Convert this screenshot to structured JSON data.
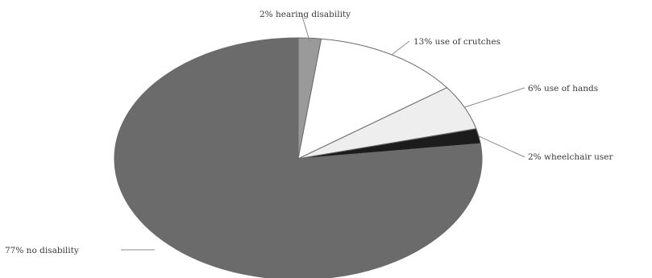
{
  "chart_data": {
    "type": "pie",
    "slices": [
      {
        "label": "2% hearing disability",
        "value": 2,
        "color": "#9a9a9a"
      },
      {
        "label": "13% use of crutches",
        "value": 13,
        "color": "#ffffff"
      },
      {
        "label": "6% use of hands",
        "value": 6,
        "color": "#eeeeee"
      },
      {
        "label": "2% wheelchair user",
        "value": 2,
        "color": "#1c1c1c"
      },
      {
        "label": "77% no disability",
        "value": 77,
        "color": "#6b6b6b"
      }
    ],
    "start_angle": "12 o'clock",
    "direction": "clockwise",
    "legend": "none"
  }
}
